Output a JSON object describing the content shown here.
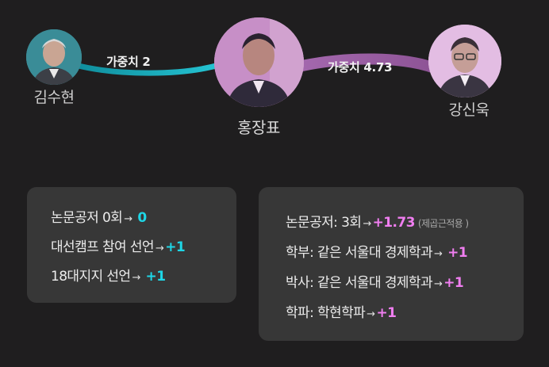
{
  "nodes": {
    "left": {
      "name": "김수현"
    },
    "center": {
      "name": "홍장표"
    },
    "right": {
      "name": "강신욱"
    }
  },
  "edges": {
    "left": {
      "label": "가중치 2",
      "color": "#16b0bf"
    },
    "right": {
      "label": "가중치 4.73",
      "color": "#9a5ea4"
    }
  },
  "left_box": {
    "rows": [
      {
        "text": "논문공저 0회",
        "arrow": "→",
        "value": "0"
      },
      {
        "text": "대선캠프 참여 선언",
        "arrow": "→",
        "value": "+1"
      },
      {
        "text": "18대지지 선언",
        "arrow": "→",
        "value": "+1"
      }
    ]
  },
  "right_box": {
    "rows": [
      {
        "text": "논문공저: 3회",
        "arrow": "→",
        "value": "+1.73",
        "note": "(제곱근적용 )"
      },
      {
        "text": "학부: 같은 서울대 경제학과",
        "arrow": "→",
        "value": "+1"
      },
      {
        "text": "박사: 같은 서울대 경제학과",
        "arrow": "→",
        "value": "+1"
      },
      {
        "text": "학파: 학현학파",
        "arrow": "→",
        "value": "+1"
      }
    ]
  },
  "colors": {
    "cyan": "#1ed6e6",
    "pink": "#f07ef0",
    "background": "#1f1e1f",
    "box": "#373737"
  }
}
